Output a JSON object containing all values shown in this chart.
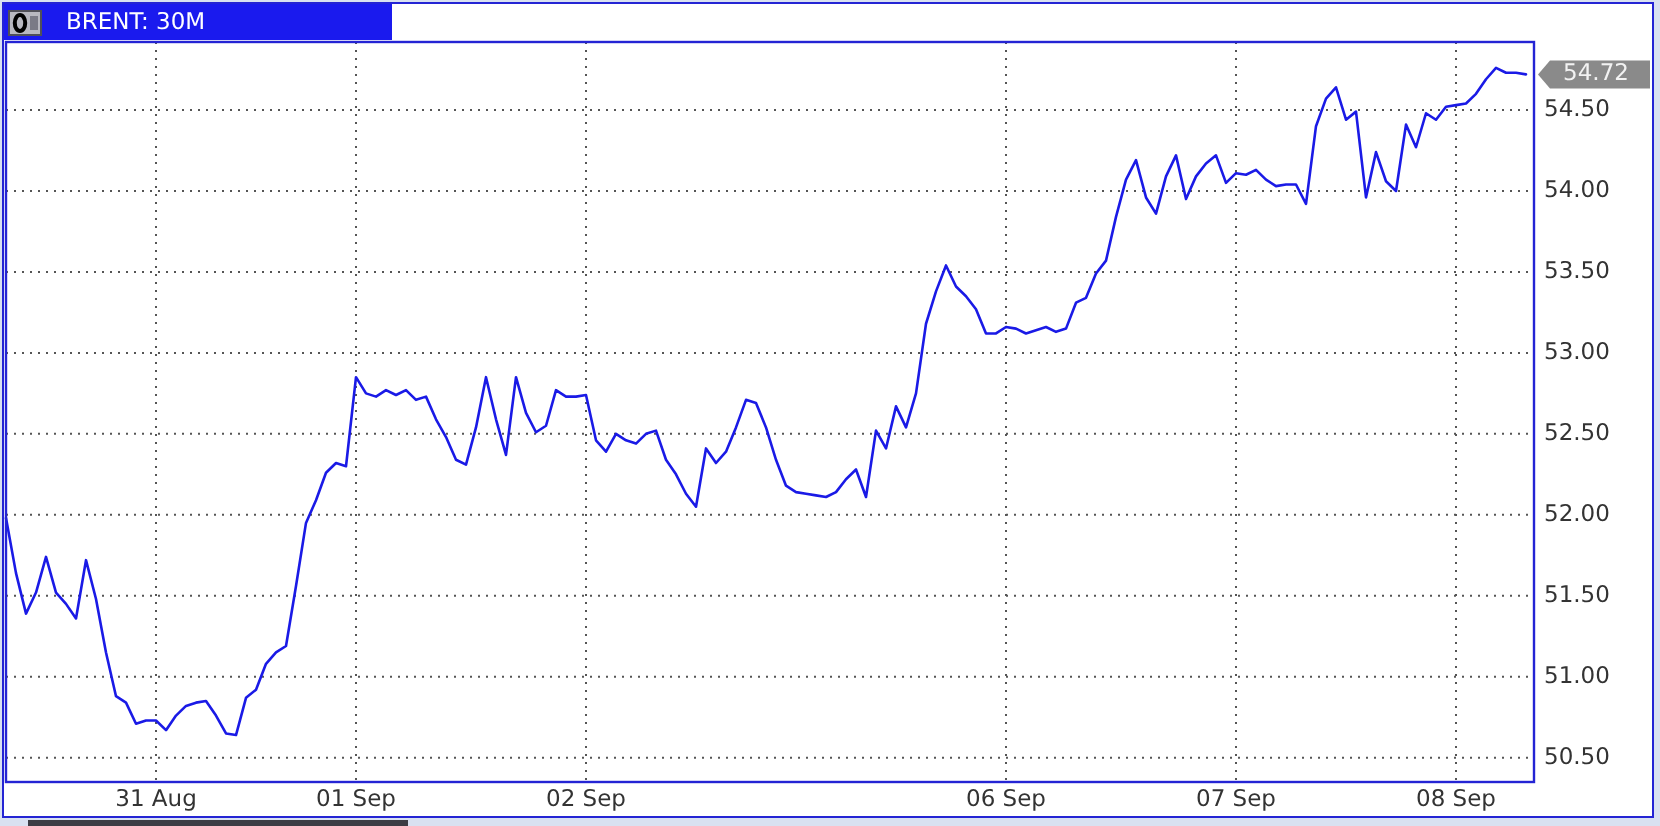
{
  "chart_data": {
    "type": "line",
    "title": "BRENT: 30M",
    "categories": [
      null,
      null,
      null,
      null,
      null,
      null,
      null,
      null,
      null,
      null,
      null,
      null,
      null,
      null,
      null,
      "31 Aug",
      null,
      null,
      null,
      null,
      null,
      null,
      null,
      null,
      null,
      null,
      null,
      null,
      null,
      null,
      null,
      null,
      null,
      null,
      null,
      "01 Sep",
      null,
      null,
      null,
      null,
      null,
      null,
      null,
      null,
      null,
      null,
      null,
      null,
      null,
      null,
      null,
      null,
      null,
      null,
      null,
      null,
      null,
      null,
      "02 Sep",
      null,
      null,
      null,
      null,
      null,
      null,
      null,
      null,
      null,
      null,
      null,
      null,
      null,
      null,
      null,
      null,
      null,
      null,
      null,
      null,
      null,
      null,
      null,
      null,
      null,
      null,
      null,
      null,
      null,
      null,
      null,
      null,
      null,
      null,
      null,
      null,
      null,
      null,
      null,
      null,
      null,
      "06 Sep",
      null,
      null,
      null,
      null,
      null,
      null,
      null,
      null,
      null,
      null,
      null,
      null,
      null,
      null,
      null,
      null,
      null,
      null,
      null,
      null,
      null,
      null,
      "07 Sep",
      null,
      null,
      null,
      null,
      null,
      null,
      null,
      null,
      null,
      null,
      null,
      null,
      null,
      null,
      null,
      null,
      null,
      null,
      null,
      null,
      null,
      "08 Sep",
      null,
      null,
      null,
      null,
      null,
      null,
      null
    ],
    "values": [
      51.98,
      51.64,
      51.39,
      51.52,
      51.74,
      51.52,
      51.45,
      51.36,
      51.72,
      51.48,
      51.15,
      50.88,
      50.84,
      50.71,
      50.73,
      50.73,
      50.67,
      50.76,
      50.82,
      50.84,
      50.85,
      50.76,
      50.65,
      50.64,
      50.87,
      50.92,
      51.08,
      51.15,
      51.19,
      51.56,
      51.95,
      52.09,
      52.26,
      52.32,
      52.3,
      52.85,
      52.75,
      52.73,
      52.77,
      52.74,
      52.77,
      52.71,
      52.73,
      52.59,
      52.48,
      52.34,
      52.31,
      52.54,
      52.85,
      52.59,
      52.37,
      52.85,
      52.63,
      52.51,
      52.55,
      52.77,
      52.73,
      52.73,
      52.74,
      52.46,
      52.39,
      52.5,
      52.46,
      52.44,
      52.5,
      52.52,
      52.34,
      52.25,
      52.13,
      52.05,
      52.41,
      52.32,
      52.39,
      52.54,
      52.71,
      52.69,
      52.54,
      52.34,
      52.18,
      52.14,
      52.13,
      52.12,
      52.11,
      52.14,
      52.22,
      52.28,
      52.11,
      52.52,
      52.41,
      52.67,
      52.54,
      52.75,
      53.18,
      53.38,
      53.54,
      53.41,
      53.35,
      53.27,
      53.12,
      53.12,
      53.16,
      53.15,
      53.12,
      53.14,
      53.16,
      53.13,
      53.15,
      53.31,
      53.34,
      53.49,
      53.57,
      53.84,
      54.07,
      54.19,
      53.96,
      53.86,
      54.09,
      54.22,
      53.95,
      54.09,
      54.17,
      54.22,
      54.05,
      54.11,
      54.1,
      54.13,
      54.07,
      54.03,
      54.04,
      54.04,
      53.92,
      54.4,
      54.57,
      54.64,
      54.44,
      54.49,
      53.96,
      54.24,
      54.06,
      54.0,
      54.41,
      54.27,
      54.48,
      54.44,
      54.52,
      54.53,
      54.54,
      54.6,
      54.69,
      54.76,
      54.73,
      54.73,
      54.72
    ],
    "color": "#1a1ae6",
    "ylim": [
      50.35,
      54.92
    ],
    "yticks": [
      {
        "value": 50.5,
        "label": "50.50"
      },
      {
        "value": 51,
        "label": "51.00"
      },
      {
        "value": 51.5,
        "label": "51.50"
      },
      {
        "value": 52,
        "label": "52.00"
      },
      {
        "value": 52.5,
        "label": "52.50"
      },
      {
        "value": 53,
        "label": "53.00"
      },
      {
        "value": 53.5,
        "label": "53.50"
      },
      {
        "value": 54,
        "label": "54.00"
      },
      {
        "value": 54.5,
        "label": "54.50"
      }
    ],
    "grid": true,
    "annotations": [
      "54.72"
    ]
  }
}
